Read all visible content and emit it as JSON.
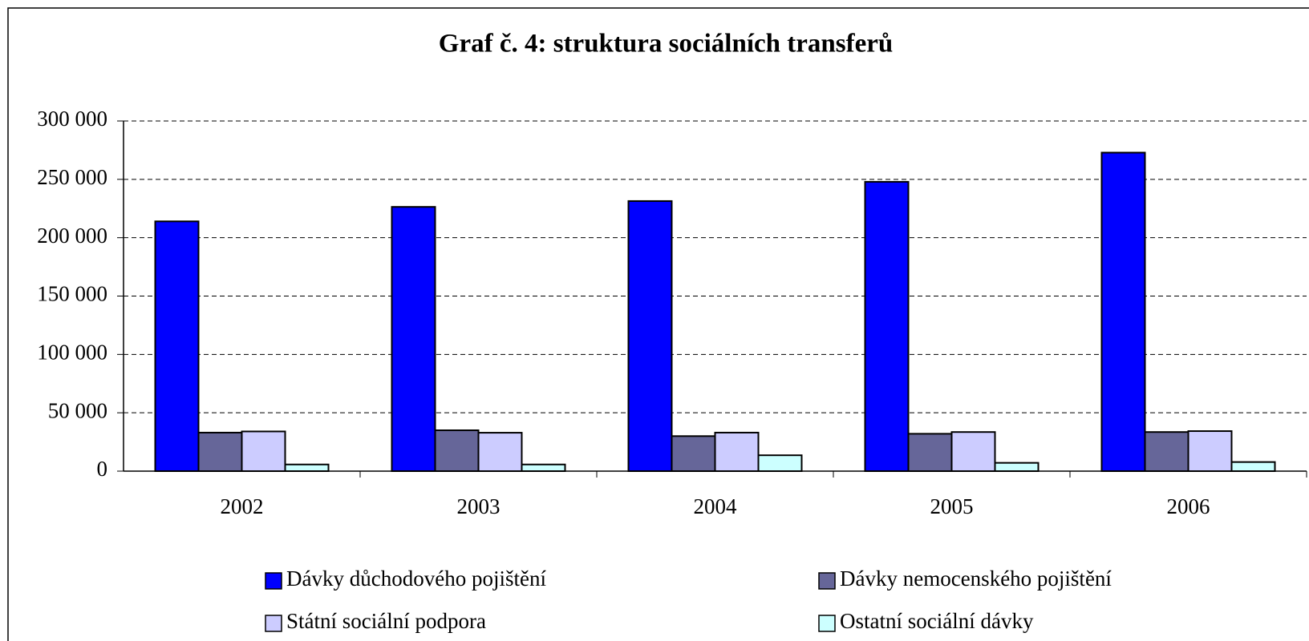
{
  "chart_data": {
    "type": "bar",
    "title": "Graf č. 4: struktura sociálních transferů",
    "categories": [
      "2002",
      "2003",
      "2004",
      "2005",
      "2006"
    ],
    "series": [
      {
        "name": "Dávky důchodového pojištění",
        "color": "#0000ff",
        "values": [
          214000,
          226400,
          231400,
          247900,
          272900
        ]
      },
      {
        "name": "Dávky nemocenského pojištění",
        "color": "#666699",
        "values": [
          33000,
          35000,
          30000,
          32000,
          33500
        ]
      },
      {
        "name": "Státní sociální podpora",
        "color": "#ccccff",
        "values": [
          34000,
          32900,
          33000,
          33500,
          34300
        ]
      },
      {
        "name": "Ostatní sociální dávky",
        "color": "#ccffff",
        "values": [
          5700,
          5700,
          13600,
          7100,
          7800
        ]
      }
    ],
    "ylim": [
      0,
      300000
    ],
    "yticks": [
      0,
      {
        "value": 50000,
        "label": "50 000"
      },
      {
        "value": 100000,
        "label": "100 000"
      },
      {
        "value": 150000,
        "label": "150 000"
      },
      {
        "value": 200000,
        "label": "200 000"
      },
      {
        "value": 250000,
        "label": "250 000"
      },
      {
        "value": 300000,
        "label": "300 000"
      }
    ],
    "grid": true
  }
}
